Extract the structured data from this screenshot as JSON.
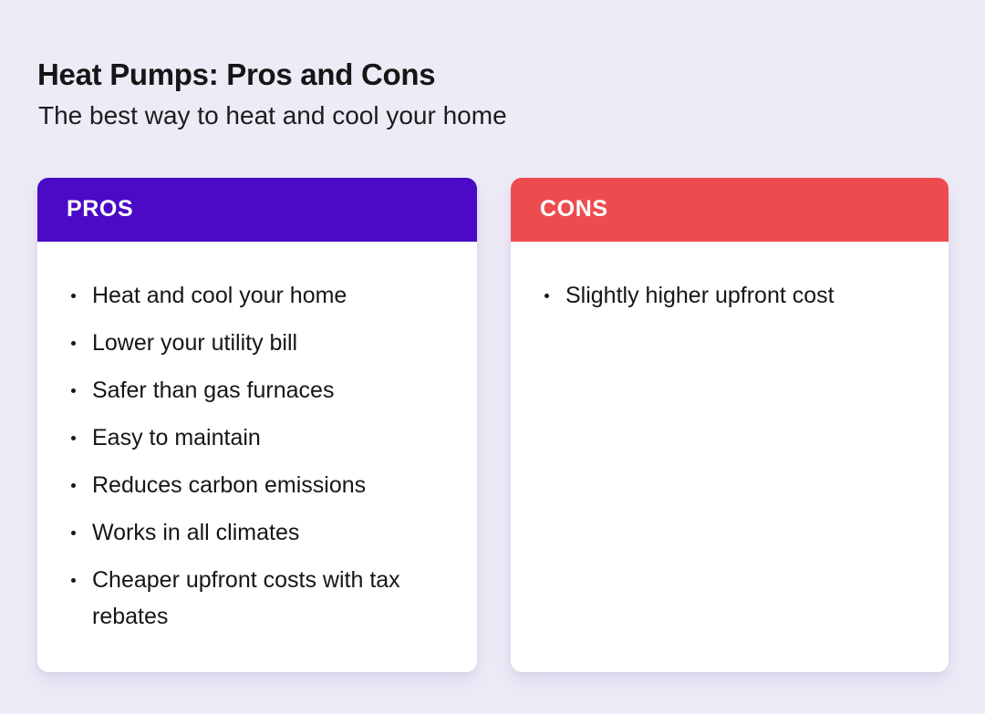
{
  "page": {
    "title": "Heat Pumps: Pros and Cons",
    "subtitle": "The best way to heat and cool your home"
  },
  "colors": {
    "background": "#EEEBF7",
    "card": "#FFFFFF",
    "pros_header": "#4A0AC6",
    "cons_header": "#ED4C4F",
    "text": "#161616",
    "header_text": "#FFFFFF"
  },
  "pros": {
    "header": "PROS",
    "items": [
      "Heat and cool your home",
      "Lower your utility bill",
      "Safer than gas furnaces",
      "Easy to maintain",
      "Reduces carbon emissions",
      "Works in all climates",
      "Cheaper upfront costs with tax rebates"
    ]
  },
  "cons": {
    "header": "CONS",
    "items": [
      "Slightly higher upfront cost"
    ]
  }
}
